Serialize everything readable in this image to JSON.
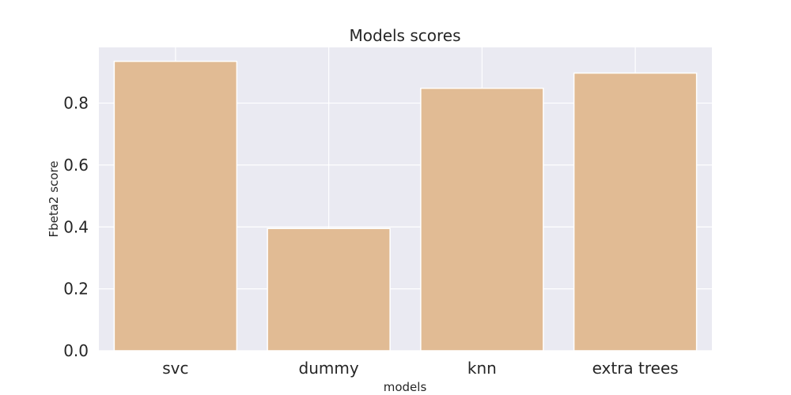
{
  "chart_data": {
    "type": "bar",
    "title": "Models scores",
    "xlabel": "models",
    "ylabel": "Fbeta2 score",
    "categories": [
      "svc",
      "dummy",
      "knn",
      "extra trees"
    ],
    "values": [
      0.935,
      0.395,
      0.848,
      0.897
    ],
    "ylim": [
      0,
      0.98
    ],
    "yticks": [
      0.0,
      0.2,
      0.4,
      0.6,
      0.8
    ],
    "ytick_labels": [
      "0.0",
      "0.2",
      "0.4",
      "0.6",
      "0.8"
    ],
    "grid": true,
    "colors": {
      "bar": "#e1bb94",
      "bar_edge": "#ffffff",
      "plot_bg": "#eaeaf2",
      "grid": "#ffffff",
      "text": "#262626"
    }
  }
}
